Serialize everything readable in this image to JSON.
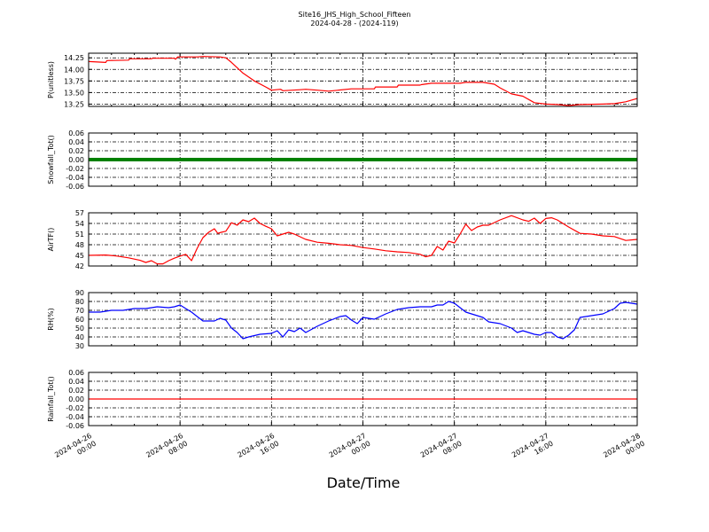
{
  "figure": {
    "title_line1": "Site16_JHS_High_School_Fifteen",
    "title_line2": "2024-04-28 - (2024-119)",
    "xlabel": "Date/Time",
    "x_tick_labels": [
      [
        "2024-04-26",
        "00:00"
      ],
      [
        "2024-04-26",
        "08:00"
      ],
      [
        "2024-04-26",
        "16:00"
      ],
      [
        "2024-04-27",
        "00:00"
      ],
      [
        "2024-04-27",
        "08:00"
      ],
      [
        "2024-04-27",
        "16:00"
      ],
      [
        "2024-04-28",
        "00:00"
      ]
    ]
  },
  "chart_data": [
    {
      "type": "line",
      "ylabel": "P(unitless)",
      "ylim": [
        13.2,
        14.35
      ],
      "yticks": [
        "14.25",
        "14.00",
        "13.75",
        "13.50",
        "13.25"
      ],
      "ytick_values": [
        14.25,
        14.0,
        13.75,
        13.5,
        13.25
      ],
      "grid": true,
      "color": "#ff0000",
      "series": [
        {
          "x_hours": [
            0,
            1.5,
            1.6,
            3.5,
            3.6,
            5.5,
            5.6,
            7.5,
            7.6,
            7.8,
            8.2,
            9.5,
            10.0,
            11.5,
            12.0,
            12.5,
            13.5,
            14.5,
            15.5,
            16.0,
            16.8,
            17.0,
            18.5,
            19.0,
            20.0,
            21.0,
            23.0,
            23.1,
            25.0,
            25.1,
            27.0,
            27.1,
            29.0,
            29.1,
            30.0,
            32.5,
            33.0,
            34.5,
            35.0,
            35.5,
            36.0,
            37.0,
            38.0,
            39.0,
            40.0,
            41.0,
            42.0,
            43.0,
            45.0,
            46.0,
            47.0,
            48.0
          ],
          "y": [
            14.17,
            14.15,
            14.19,
            14.2,
            14.23,
            14.23,
            14.24,
            14.24,
            14.22,
            14.27,
            14.27,
            14.27,
            14.28,
            14.27,
            14.25,
            14.15,
            13.92,
            13.75,
            13.62,
            13.55,
            13.57,
            13.54,
            13.56,
            13.57,
            13.55,
            13.53,
            13.58,
            13.58,
            13.58,
            13.62,
            13.62,
            13.66,
            13.66,
            13.67,
            13.7,
            13.7,
            13.72,
            13.72,
            13.7,
            13.68,
            13.6,
            13.47,
            13.42,
            13.28,
            13.25,
            13.24,
            13.22,
            13.24,
            13.25,
            13.26,
            13.3,
            13.37
          ]
        }
      ]
    },
    {
      "type": "line",
      "ylabel": "Snowfall_Tot()",
      "ylim": [
        -0.06,
        0.06
      ],
      "yticks": [
        "0.06",
        "0.04",
        "0.02",
        "0.00",
        "-0.02",
        "-0.04",
        "-0.06"
      ],
      "ytick_values": [
        0.06,
        0.04,
        0.02,
        0.0,
        -0.02,
        -0.04,
        -0.06
      ],
      "grid": true,
      "color": "#008000",
      "series": [
        {
          "x_hours": [
            0,
            48
          ],
          "y": [
            0.0,
            0.0
          ]
        }
      ]
    },
    {
      "type": "line",
      "ylabel": "AirTF()",
      "ylim": [
        42,
        57
      ],
      "yticks": [
        "57",
        "54",
        "51",
        "48",
        "45",
        "42"
      ],
      "ytick_values": [
        57,
        54,
        51,
        48,
        45,
        42
      ],
      "grid": true,
      "color": "#ff0000",
      "series": [
        {
          "x_hours": [
            0,
            1.5,
            2.5,
            3.5,
            4.5,
            5.0,
            5.5,
            6.0,
            6.5,
            7.0,
            7.5,
            8.0,
            8.5,
            9.0,
            9.5,
            10.0,
            10.5,
            11.0,
            11.3,
            11.6,
            12.0,
            12.5,
            13.0,
            13.5,
            14.0,
            14.5,
            15.0,
            15.5,
            16.0,
            16.5,
            17.0,
            17.5,
            18.0,
            19.0,
            20.0,
            21.0,
            22.0,
            23.0,
            24.0,
            25.0,
            26.0,
            27.0,
            28.0,
            29.0,
            29.5,
            30.0,
            30.5,
            31.0,
            31.5,
            32.0,
            32.5,
            33.0,
            33.5,
            34.0,
            34.5,
            35.0,
            36.0,
            37.0,
            38.0,
            38.5,
            39.0,
            39.5,
            40.0,
            40.5,
            41.0,
            41.5,
            42.0,
            43.0,
            44.0,
            45.0,
            46.0,
            47.0,
            48.0
          ],
          "y": [
            45.0,
            45.1,
            44.8,
            44.3,
            43.6,
            43.0,
            43.5,
            42.6,
            42.6,
            43.5,
            44.2,
            44.8,
            45.3,
            43.5,
            47.0,
            50.0,
            51.5,
            52.5,
            51.2,
            51.5,
            51.8,
            54.2,
            53.5,
            55.0,
            54.5,
            55.5,
            54.0,
            53.2,
            52.5,
            50.5,
            51.0,
            51.5,
            51.0,
            49.5,
            48.7,
            48.4,
            48.0,
            47.8,
            47.2,
            46.8,
            46.3,
            46.0,
            45.8,
            45.3,
            44.6,
            45.0,
            47.5,
            46.5,
            49.0,
            48.5,
            51.0,
            53.8,
            52.0,
            53.0,
            53.5,
            53.5,
            55.0,
            56.2,
            55.0,
            54.6,
            55.5,
            54.0,
            55.4,
            55.6,
            55.0,
            54.0,
            53.0,
            51.2,
            51.0,
            50.5,
            50.3,
            49.2,
            49.5
          ]
        }
      ]
    },
    {
      "type": "line",
      "ylabel": "RH(%)",
      "ylim": [
        30,
        90
      ],
      "yticks": [
        "90",
        "80",
        "70",
        "60",
        "50",
        "40",
        "30"
      ],
      "ytick_values": [
        90,
        80,
        70,
        60,
        50,
        40,
        30
      ],
      "grid": true,
      "color": "#0000ff",
      "series": [
        {
          "x_hours": [
            0,
            1.0,
            2.0,
            3.0,
            4.0,
            5.0,
            6.0,
            7.0,
            7.5,
            8.0,
            8.5,
            9.0,
            9.5,
            10.0,
            11.0,
            11.5,
            12.0,
            12.5,
            13.0,
            13.5,
            14.0,
            15.0,
            16.0,
            16.5,
            17.0,
            17.5,
            18.0,
            18.5,
            19.0,
            20.0,
            21.0,
            22.0,
            22.5,
            23.0,
            23.5,
            24.0,
            25.0,
            26.0,
            27.0,
            28.0,
            29.0,
            30.0,
            30.5,
            31.0,
            31.5,
            32.0,
            33.0,
            33.5,
            34.0,
            34.5,
            35.0,
            35.5,
            36.0,
            37.0,
            37.5,
            38.0,
            39.0,
            39.5,
            40.0,
            40.5,
            41.0,
            41.5,
            42.0,
            42.5,
            43.0,
            44.0,
            45.0,
            46.0,
            46.5,
            47.0,
            48.0
          ],
          "y": [
            68,
            68,
            70,
            70,
            72,
            72,
            74,
            73,
            74,
            76,
            72,
            68,
            63,
            58,
            58,
            61,
            59,
            50,
            45,
            38,
            40,
            43,
            44,
            47,
            40,
            48,
            46,
            50,
            45,
            52,
            58,
            63,
            64,
            59,
            55,
            62,
            60,
            66,
            71,
            73,
            74,
            74,
            76,
            76,
            80,
            78,
            68,
            66,
            64,
            62,
            57,
            56,
            55,
            50,
            45,
            47,
            43,
            42,
            45,
            45,
            40,
            38,
            42,
            48,
            62,
            64,
            66,
            72,
            78,
            79,
            77
          ]
        }
      ]
    },
    {
      "type": "line",
      "ylabel": "Rainfall_Tot()",
      "ylim": [
        -0.06,
        0.06
      ],
      "yticks": [
        "0.06",
        "0.04",
        "0.02",
        "0.00",
        "-0.02",
        "-0.04",
        "-0.06"
      ],
      "ytick_values": [
        0.06,
        0.04,
        0.02,
        0.0,
        -0.02,
        -0.04,
        -0.06
      ],
      "grid": true,
      "color": "#ff0000",
      "series": [
        {
          "x_hours": [
            0,
            48
          ],
          "y": [
            0.0,
            0.0
          ]
        }
      ]
    }
  ]
}
